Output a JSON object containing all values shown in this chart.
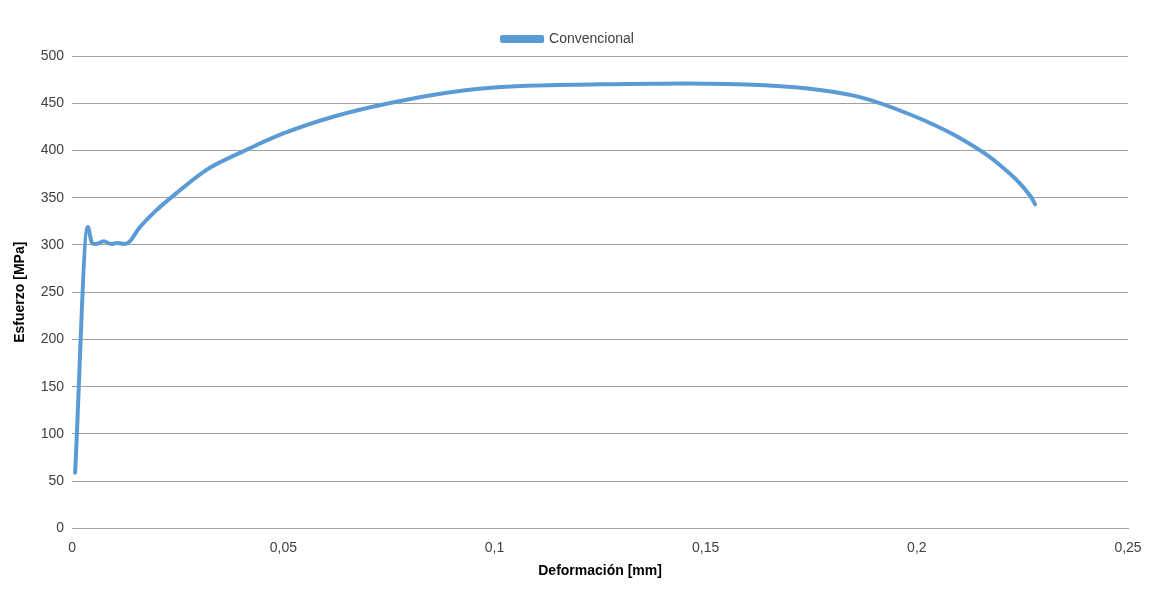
{
  "chart_data": {
    "type": "line",
    "xlabel": "Deformación [mm]",
    "ylabel": "Esfuerzo [MPa]",
    "xlim": [
      0,
      0.25
    ],
    "xticks": [
      {
        "value": 0,
        "label": "0"
      },
      {
        "value": 0.05,
        "label": "0,05"
      },
      {
        "value": 0.1,
        "label": "0,1"
      },
      {
        "value": 0.15,
        "label": "0,15"
      },
      {
        "value": 0.2,
        "label": "0,2"
      },
      {
        "value": 0.25,
        "label": "0,25"
      }
    ],
    "ylim": [
      0,
      500
    ],
    "yticks": [
      0,
      50,
      100,
      150,
      200,
      250,
      300,
      350,
      400,
      450,
      500
    ],
    "grid": "y",
    "legend": "top",
    "marker": "none",
    "line_style": "solid",
    "series": [
      {
        "name": "Convencional",
        "color": "#5b9bd5",
        "x": [
          0.0007,
          0.0037,
          0.0047,
          0.0057,
          0.0075,
          0.0092,
          0.0107,
          0.0125,
          0.0137,
          0.0157,
          0.02,
          0.025,
          0.032,
          0.04,
          0.05,
          0.062,
          0.075,
          0.09,
          0.105,
          0.125,
          0.145,
          0.164,
          0.177,
          0.187,
          0.199,
          0.209,
          0.219,
          0.227,
          0.228
        ],
        "values": [
          59,
          319,
          302,
          301,
          304,
          301,
          302,
          301,
          304,
          317,
          337,
          356,
          380,
          398,
          418,
          436,
          450,
          462,
          468,
          470,
          471,
          469,
          464,
          456,
          437,
          416,
          387,
          351,
          343
        ]
      }
    ]
  }
}
